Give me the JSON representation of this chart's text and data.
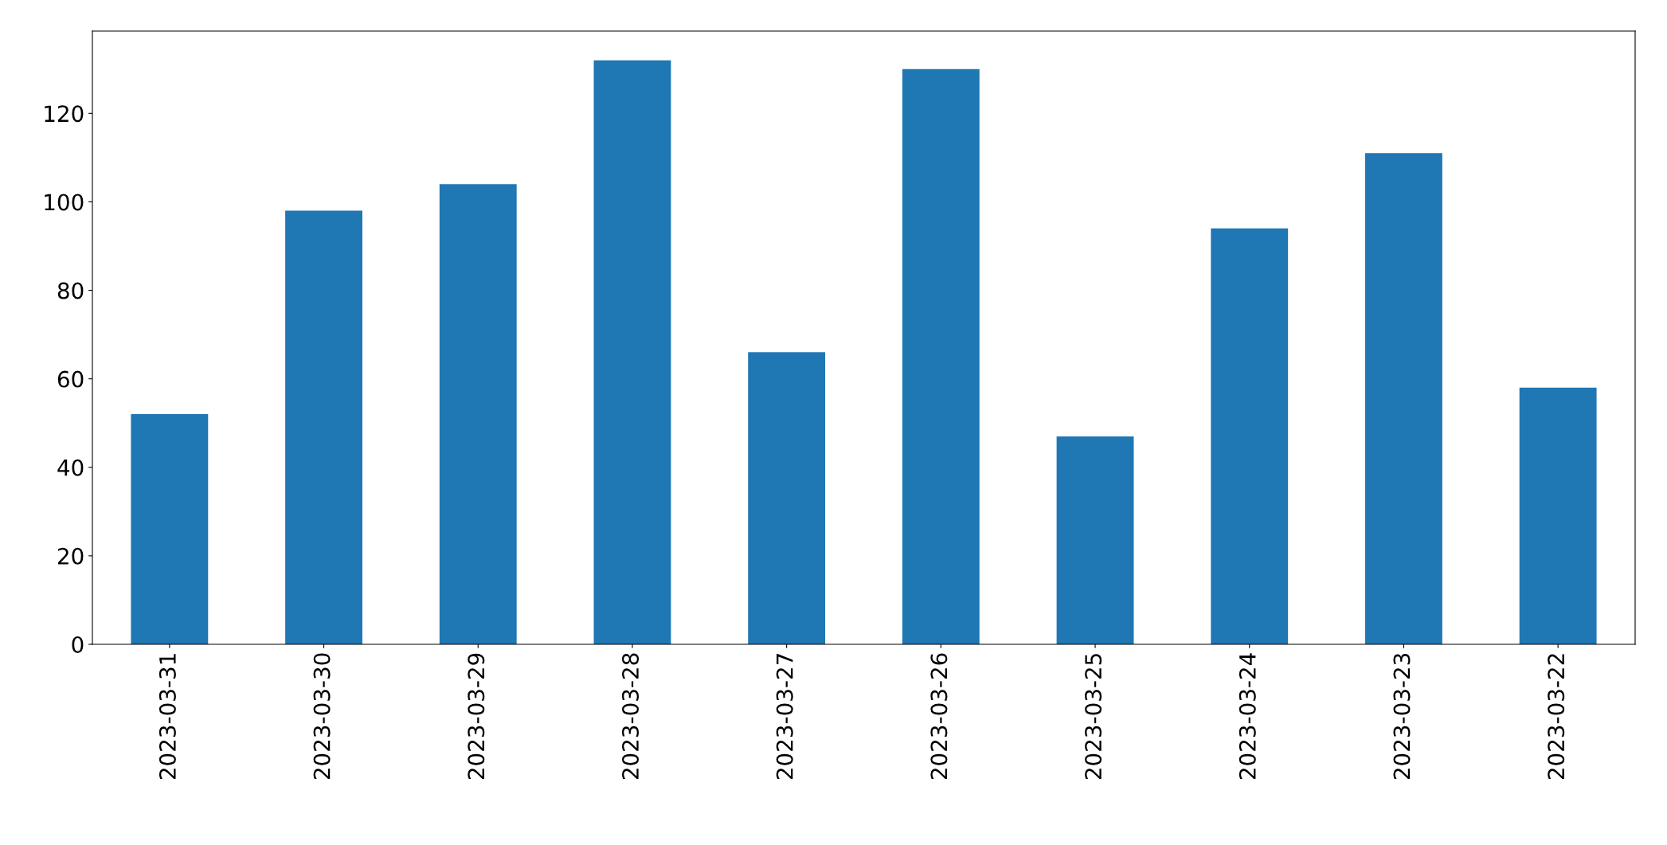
{
  "chart_data": {
    "type": "bar",
    "categories": [
      "2023-03-31",
      "2023-03-30",
      "2023-03-29",
      "2023-03-28",
      "2023-03-27",
      "2023-03-26",
      "2023-03-25",
      "2023-03-24",
      "2023-03-23",
      "2023-03-22"
    ],
    "values": [
      52,
      98,
      104,
      132,
      66,
      130,
      47,
      94,
      111,
      58
    ],
    "color": "#1f77b4",
    "ylim": [
      0,
      138.6
    ],
    "yticks": [
      0,
      20,
      40,
      60,
      80,
      100,
      120
    ],
    "grid": false,
    "legend": false
  }
}
